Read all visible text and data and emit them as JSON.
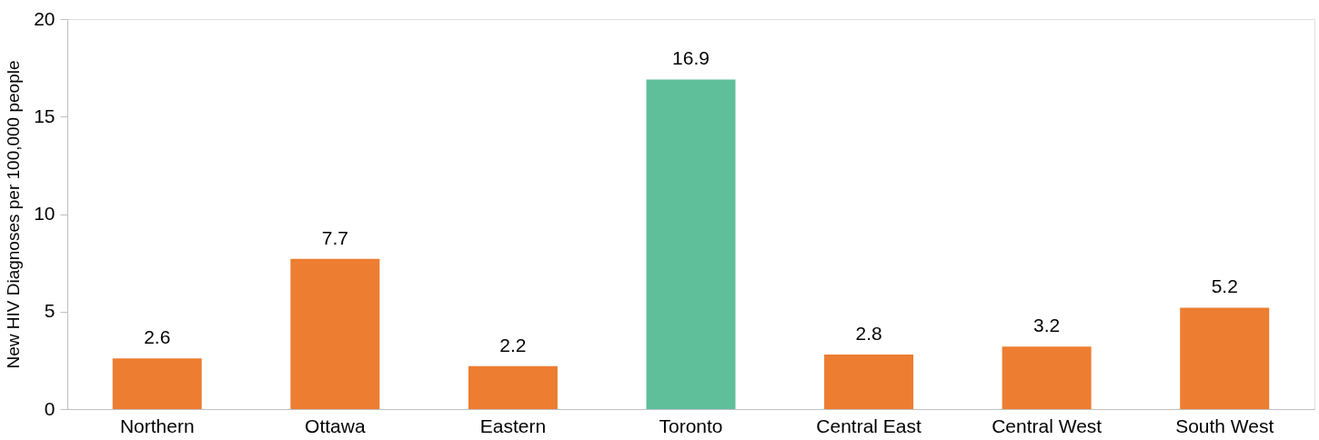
{
  "chart_data": {
    "type": "bar",
    "ylabel": "New HIV Diagnoses per 100,000 people",
    "categories": [
      "Northern",
      "Ottawa",
      "Eastern",
      "Toronto",
      "Central East",
      "Central West",
      "South West"
    ],
    "values": [
      2.6,
      7.7,
      2.2,
      16.9,
      2.8,
      3.2,
      5.2
    ],
    "colors": [
      "#ed7d31",
      "#ed7d31",
      "#ed7d31",
      "#5fbf9b",
      "#ed7d31",
      "#ed7d31",
      "#ed7d31"
    ],
    "ylim": [
      0,
      20
    ],
    "yticks": [
      0,
      5,
      10,
      15,
      20
    ],
    "grid": false,
    "legend": false,
    "data_labels": true
  }
}
